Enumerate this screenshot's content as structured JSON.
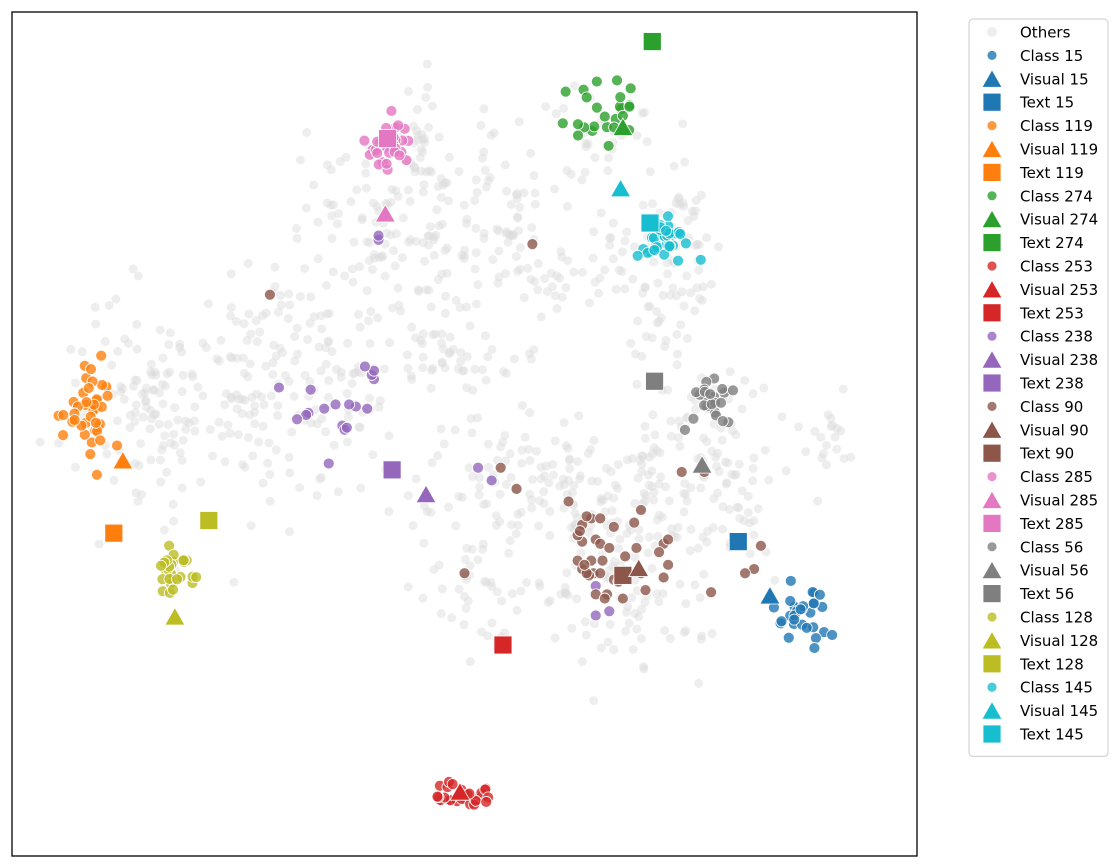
{
  "chart_data": {
    "type": "scatter",
    "title": "",
    "xlabel": "",
    "ylabel": "",
    "xlim": [
      -100,
      100
    ],
    "ylim": [
      -100,
      100
    ],
    "grid": false,
    "legend": {
      "placement": "outside-right-top"
    },
    "others": {
      "name": "Others",
      "color": "#d9d9d9",
      "clusters": [
        {
          "c": [
            -70,
            10
          ],
          "s": [
            9,
            13
          ],
          "n": 110
        },
        {
          "c": [
            -45,
            2
          ],
          "s": [
            10,
            12
          ],
          "n": 90
        },
        {
          "c": [
            -40,
            28
          ],
          "s": [
            7,
            6
          ],
          "n": 40
        },
        {
          "c": [
            -28,
            10
          ],
          "s": [
            6,
            7
          ],
          "n": 40
        },
        {
          "c": [
            -22,
            35
          ],
          "s": [
            5,
            8
          ],
          "n": 25
        },
        {
          "c": [
            -28,
            55
          ],
          "s": [
            6,
            7
          ],
          "n": 30
        },
        {
          "c": [
            -12,
            50
          ],
          "s": [
            6,
            8
          ],
          "n": 40
        },
        {
          "c": [
            -8,
            28
          ],
          "s": [
            4,
            8
          ],
          "n": 30
        },
        {
          "c": [
            -10,
            70
          ],
          "s": [
            2,
            8
          ],
          "n": 30
        },
        {
          "c": [
            2,
            18
          ],
          "s": [
            8,
            5
          ],
          "n": 30
        },
        {
          "c": [
            5,
            52
          ],
          "s": [
            7,
            10
          ],
          "n": 70
        },
        {
          "c": [
            15,
            40
          ],
          "s": [
            5,
            6
          ],
          "n": 30
        },
        {
          "c": [
            30,
            70
          ],
          "s": [
            5,
            6
          ],
          "n": 30
        },
        {
          "c": [
            35,
            45
          ],
          "s": [
            5,
            7
          ],
          "n": 30
        },
        {
          "c": [
            45,
            30
          ],
          "s": [
            6,
            8
          ],
          "n": 40
        },
        {
          "c": [
            48,
            50
          ],
          "s": [
            4,
            8
          ],
          "n": 30
        },
        {
          "c": [
            10,
            -12
          ],
          "s": [
            10,
            8
          ],
          "n": 80
        },
        {
          "c": [
            28,
            -20
          ],
          "s": [
            10,
            10
          ],
          "n": 80
        },
        {
          "c": [
            48,
            -10
          ],
          "s": [
            8,
            10
          ],
          "n": 70
        },
        {
          "c": [
            35,
            -40
          ],
          "s": [
            10,
            8
          ],
          "n": 60
        },
        {
          "c": [
            5,
            -38
          ],
          "s": [
            8,
            6
          ],
          "n": 40
        },
        {
          "c": [
            62,
            -18
          ],
          "s": [
            5,
            8
          ],
          "n": 30
        },
        {
          "c": [
            80,
            -5
          ],
          "s": [
            4,
            5
          ],
          "n": 20
        },
        {
          "c": [
            58,
            5
          ],
          "s": [
            6,
            6
          ],
          "n": 25
        }
      ]
    },
    "series": [
      {
        "name": "Class 15",
        "marker": "circle",
        "color": "#1f77b4",
        "cluster": {
          "c": [
            75,
            -42
          ],
          "s": [
            3,
            3
          ],
          "n": 30
        }
      },
      {
        "name": "Visual 15",
        "marker": "triangle",
        "color": "#1f77b4",
        "points": [
          [
            67.5,
            -38.5
          ]
        ]
      },
      {
        "name": "Text 15",
        "marker": "square",
        "color": "#1f77b4",
        "points": [
          [
            60.5,
            -25.5
          ]
        ]
      },
      {
        "name": "Class 119",
        "marker": "circle",
        "color": "#ff7f0e",
        "cluster": {
          "c": [
            -83,
            5
          ],
          "s": [
            3,
            6
          ],
          "n": 40
        }
      },
      {
        "name": "Visual 119",
        "marker": "triangle",
        "color": "#ff7f0e",
        "points": [
          [
            -75.5,
            -6.5
          ]
        ]
      },
      {
        "name": "Text 119",
        "marker": "square",
        "color": "#ff7f0e",
        "points": [
          [
            -77.5,
            -23.5
          ]
        ]
      },
      {
        "name": "Class 274",
        "marker": "circle",
        "color": "#2ca02c",
        "cluster": {
          "c": [
            31,
            76
          ],
          "s": [
            4,
            4
          ],
          "n": 25
        }
      },
      {
        "name": "Visual 274",
        "marker": "triangle",
        "color": "#2ca02c",
        "points": [
          [
            35,
            72.5
          ]
        ]
      },
      {
        "name": "Text 274",
        "marker": "square",
        "color": "#2ca02c",
        "points": [
          [
            41.5,
            93
          ]
        ]
      },
      {
        "name": "Class 253",
        "marker": "circle",
        "color": "#d62728",
        "cluster": {
          "c": [
            -1.5,
            -85.5
          ],
          "s": [
            4,
            1.3
          ],
          "n": 30
        }
      },
      {
        "name": "Visual 253",
        "marker": "triangle",
        "color": "#d62728",
        "points": [
          [
            -1,
            -85
          ]
        ]
      },
      {
        "name": "Text 253",
        "marker": "square",
        "color": "#d62728",
        "points": [
          [
            8.5,
            -50
          ]
        ]
      },
      {
        "name": "Class 238",
        "marker": "circle",
        "color": "#9467bd",
        "points": [
          [
            -41,
            11
          ],
          [
            -34,
            10.5
          ],
          [
            -21.5,
            6
          ],
          [
            -24,
            6.5
          ],
          [
            -25.5,
            7
          ],
          [
            -28.5,
            7
          ],
          [
            -31,
            6
          ],
          [
            -34.5,
            5
          ],
          [
            -35,
            4.5
          ],
          [
            -37,
            3.5
          ],
          [
            -20,
            13
          ],
          [
            -20.5,
            14
          ],
          [
            -20,
            15
          ],
          [
            -27,
            2
          ],
          [
            -26.5,
            1
          ],
          [
            -26,
            1.5
          ],
          [
            -30,
            -7
          ],
          [
            -22,
            16
          ],
          [
            3,
            -8
          ],
          [
            6,
            -11
          ],
          [
            29,
            -36
          ],
          [
            32,
            -42
          ],
          [
            29,
            -43
          ],
          [
            -19,
            46
          ],
          [
            -19,
            47
          ]
        ]
      },
      {
        "name": "Visual 238",
        "marker": "triangle",
        "color": "#9467bd",
        "points": [
          [
            -8.5,
            -14.5
          ]
        ]
      },
      {
        "name": "Text 238",
        "marker": "square",
        "color": "#9467bd",
        "points": [
          [
            -16,
            -8.5
          ]
        ]
      },
      {
        "name": "Class 90",
        "marker": "circle",
        "color": "#8c564b",
        "points": [
          [
            28,
            -20
          ],
          [
            26,
            -21.5
          ],
          [
            29,
            -25
          ],
          [
            26,
            -25.5
          ],
          [
            30,
            -20
          ],
          [
            25,
            -24
          ],
          [
            26,
            -32
          ],
          [
            28.5,
            -33
          ],
          [
            25,
            -30
          ],
          [
            30,
            -33
          ],
          [
            27.5,
            -33.5
          ],
          [
            29,
            -38
          ],
          [
            33,
            -34.5
          ],
          [
            33,
            -22
          ],
          [
            44,
            -26
          ],
          [
            43,
            -28
          ],
          [
            39,
            -33
          ],
          [
            35,
            -39
          ],
          [
            48,
            -9
          ],
          [
            45,
            -31
          ],
          [
            30,
            -26
          ],
          [
            37.5,
            -21
          ],
          [
            40,
            -37
          ],
          [
            34.5,
            -32.5
          ],
          [
            30.5,
            -30
          ],
          [
            28,
            -30
          ],
          [
            25.5,
            -23
          ],
          [
            27,
            -19.5
          ],
          [
            39,
            -18
          ],
          [
            45,
            -25
          ],
          [
            32,
            -27
          ],
          [
            38,
            -27
          ],
          [
            44,
            -34
          ],
          [
            65.5,
            -26.5
          ],
          [
            64,
            -32
          ],
          [
            62,
            -33
          ],
          [
            54.5,
            -37.5
          ],
          [
            27,
            -33
          ],
          [
            0,
            -33
          ],
          [
            8,
            -8
          ],
          [
            31.5,
            -38
          ],
          [
            11.5,
            -13
          ],
          [
            26.5,
            -31
          ],
          [
            34,
            -35
          ],
          [
            23,
            -16
          ],
          [
            35.5,
            -29
          ],
          [
            31,
            -39
          ],
          [
            53,
            -9
          ],
          [
            15,
            45
          ],
          [
            -43,
            33
          ]
        ]
      },
      {
        "name": "Visual 90",
        "marker": "triangle",
        "color": "#8c564b",
        "points": [
          [
            38.5,
            -32
          ]
        ]
      },
      {
        "name": "Text 90",
        "marker": "square",
        "color": "#8c564b",
        "points": [
          [
            35,
            -33.5
          ]
        ]
      },
      {
        "name": "Class 285",
        "marker": "circle",
        "color": "#e377c2",
        "cluster": {
          "c": [
            -17,
            70
          ],
          "s": [
            2.5,
            3
          ],
          "n": 35
        }
      },
      {
        "name": "Visual 285",
        "marker": "triangle",
        "color": "#e377c2",
        "points": [
          [
            -17.5,
            52
          ]
        ]
      },
      {
        "name": "Text 285",
        "marker": "square",
        "color": "#e377c2",
        "points": [
          [
            -17,
            70
          ]
        ]
      },
      {
        "name": "Class 56",
        "marker": "circle",
        "color": "#7f7f7f",
        "cluster": {
          "c": [
            54,
            7
          ],
          "s": [
            2,
            3
          ],
          "n": 25
        }
      },
      {
        "name": "Visual 56",
        "marker": "triangle",
        "color": "#7f7f7f",
        "points": [
          [
            52.5,
            -7.5
          ]
        ]
      },
      {
        "name": "Text 56",
        "marker": "square",
        "color": "#7f7f7f",
        "points": [
          [
            42,
            12.5
          ]
        ]
      },
      {
        "name": "Class 128",
        "marker": "circle",
        "color": "#bcbd22",
        "cluster": {
          "c": [
            -64,
            -32
          ],
          "s": [
            2.5,
            2.5
          ],
          "n": 30
        }
      },
      {
        "name": "Visual 128",
        "marker": "triangle",
        "color": "#bcbd22",
        "points": [
          [
            -64,
            -43.5
          ]
        ]
      },
      {
        "name": "Text 128",
        "marker": "square",
        "color": "#bcbd22",
        "points": [
          [
            -56.5,
            -20.5
          ]
        ]
      },
      {
        "name": "Class 145",
        "marker": "circle",
        "color": "#17becf",
        "cluster": {
          "c": [
            44.5,
            47.5
          ],
          "s": [
            3,
            3
          ],
          "n": 35
        }
      },
      {
        "name": "Visual 145",
        "marker": "triangle",
        "color": "#17becf",
        "points": [
          [
            34.5,
            58
          ]
        ]
      },
      {
        "name": "Text 145",
        "marker": "square",
        "color": "#17becf",
        "points": [
          [
            41,
            50
          ]
        ]
      }
    ]
  }
}
